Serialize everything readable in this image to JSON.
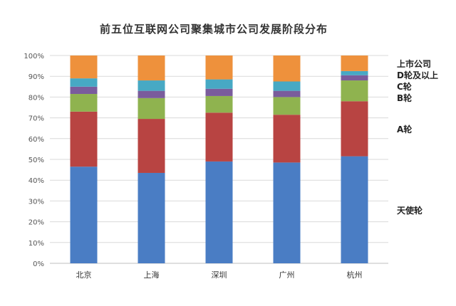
{
  "chart_data": {
    "type": "bar",
    "stacked": true,
    "percent": true,
    "title": "前五位互联网公司聚集城市公司发展阶段分布",
    "categories": [
      "北京",
      "上海",
      "深圳",
      "广州",
      "杭州"
    ],
    "series": [
      {
        "name": "天使轮",
        "color": "#4a7dc4",
        "values": [
          0.465,
          0.435,
          0.49,
          0.485,
          0.515
        ]
      },
      {
        "name": "A轮",
        "color": "#b84442",
        "values": [
          0.265,
          0.26,
          0.235,
          0.23,
          0.265
        ]
      },
      {
        "name": "B轮",
        "color": "#8fb34f",
        "values": [
          0.085,
          0.1,
          0.08,
          0.085,
          0.1
        ]
      },
      {
        "name": "C轮",
        "color": "#7a5c9c",
        "values": [
          0.035,
          0.035,
          0.035,
          0.03,
          0.025
        ]
      },
      {
        "name": "D轮及以上",
        "color": "#47a9c4",
        "values": [
          0.04,
          0.05,
          0.045,
          0.045,
          0.02
        ]
      },
      {
        "name": "上市公司",
        "color": "#ee913c",
        "values": [
          0.11,
          0.12,
          0.115,
          0.125,
          0.075
        ]
      }
    ],
    "ylim": [
      0,
      1
    ],
    "yticks": [
      "0%",
      "10%",
      "20%",
      "30%",
      "40%",
      "50%",
      "60%",
      "70%",
      "80%",
      "90%",
      "100%"
    ],
    "grid": true,
    "legend": "right",
    "xlabel": "",
    "ylabel": ""
  }
}
